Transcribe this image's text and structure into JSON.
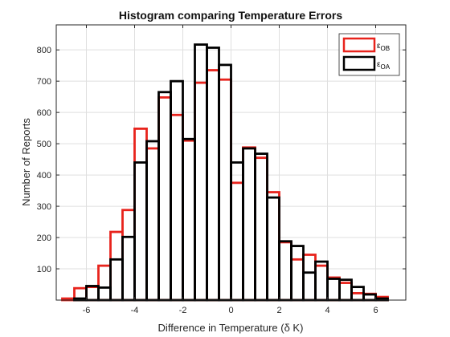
{
  "chart_data": {
    "type": "bar",
    "subtype": "histogram-stairs-overlay",
    "title": "Histogram comparing Temperature Errors",
    "xlabel": "Difference in Temperature (δ K)",
    "ylabel": "Number of Reports",
    "xlim": [
      -7.25,
      7.25
    ],
    "ylim": [
      0,
      880
    ],
    "xticks": [
      -6,
      -4,
      -2,
      0,
      2,
      4,
      6
    ],
    "yticks": [
      100,
      200,
      300,
      400,
      500,
      600,
      700,
      800
    ],
    "grid": true,
    "legend_position": "top-right",
    "bin_edges": [
      -7.0,
      -6.5,
      -6.0,
      -5.5,
      -5.0,
      -4.5,
      -4.0,
      -3.5,
      -3.0,
      -2.5,
      -2.0,
      -1.5,
      -1.0,
      -0.5,
      0.0,
      0.5,
      1.0,
      1.5,
      2.0,
      2.5,
      3.0,
      3.5,
      4.0,
      4.5,
      5.0,
      5.5,
      6.0,
      6.5,
      7.0
    ],
    "series": [
      {
        "name": "ε",
        "subscript": "OB",
        "color": "#e8231c",
        "values": [
          5,
          38,
          42,
          110,
          218,
          288,
          548,
          485,
          648,
          592,
          510,
          695,
          735,
          705,
          375,
          488,
          455,
          345,
          185,
          130,
          145,
          110,
          72,
          55,
          22,
          20,
          10,
          0
        ]
      },
      {
        "name": "ε",
        "subscript": "OA",
        "color": "#000000",
        "values": [
          0,
          5,
          45,
          40,
          130,
          202,
          440,
          508,
          665,
          700,
          515,
          817,
          807,
          752,
          440,
          485,
          468,
          328,
          188,
          173,
          88,
          123,
          68,
          65,
          42,
          18,
          5,
          0
        ]
      }
    ]
  }
}
